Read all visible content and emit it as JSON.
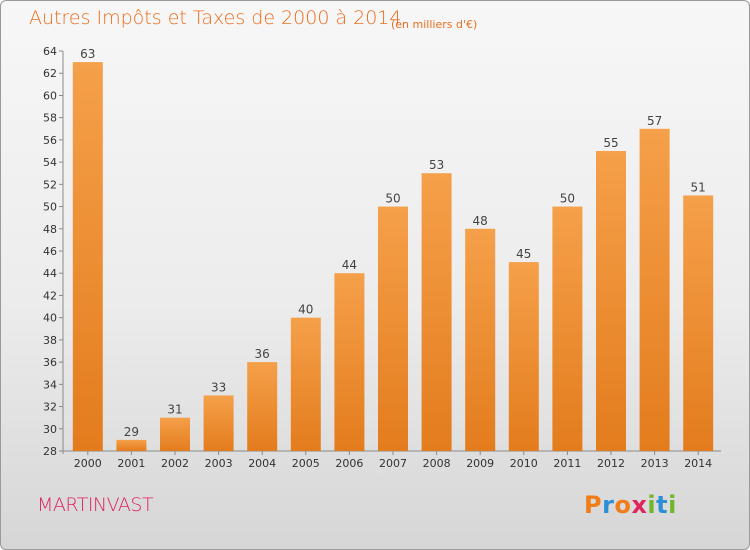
{
  "header": {
    "title": "Autres Impôts et Taxes de 2000 à 2014",
    "subtitle": "(en milliers d'€)"
  },
  "footer": {
    "commune": "MARTINVAST",
    "brand": "Proxiti",
    "brand_colors": [
      "#f07d1a",
      "#2d8fd5",
      "#f07d1a",
      "#e0245e",
      "#72b62c",
      "#2d8fd5",
      "#72b62c"
    ]
  },
  "colors": {
    "bar_light": "#f5a04a",
    "bar_dark": "#e37c1d",
    "title": "#ec6d1d",
    "commune": "#e0245e"
  },
  "chart_data": {
    "type": "bar",
    "categories": [
      "2000",
      "2001",
      "2002",
      "2003",
      "2004",
      "2005",
      "2006",
      "2007",
      "2008",
      "2009",
      "2010",
      "2011",
      "2012",
      "2013",
      "2014"
    ],
    "values": [
      63,
      29,
      31,
      33,
      36,
      40,
      44,
      50,
      53,
      48,
      45,
      50,
      55,
      57,
      51
    ],
    "title": "Autres Impôts et Taxes de 2000 à 2014",
    "subtitle": "(en milliers d'€)",
    "ylim": [
      28,
      64
    ],
    "yticks": [
      28,
      30,
      32,
      34,
      36,
      38,
      40,
      42,
      44,
      46,
      48,
      50,
      52,
      54,
      56,
      58,
      60,
      62,
      64
    ],
    "grid": false,
    "data_labels": true
  }
}
